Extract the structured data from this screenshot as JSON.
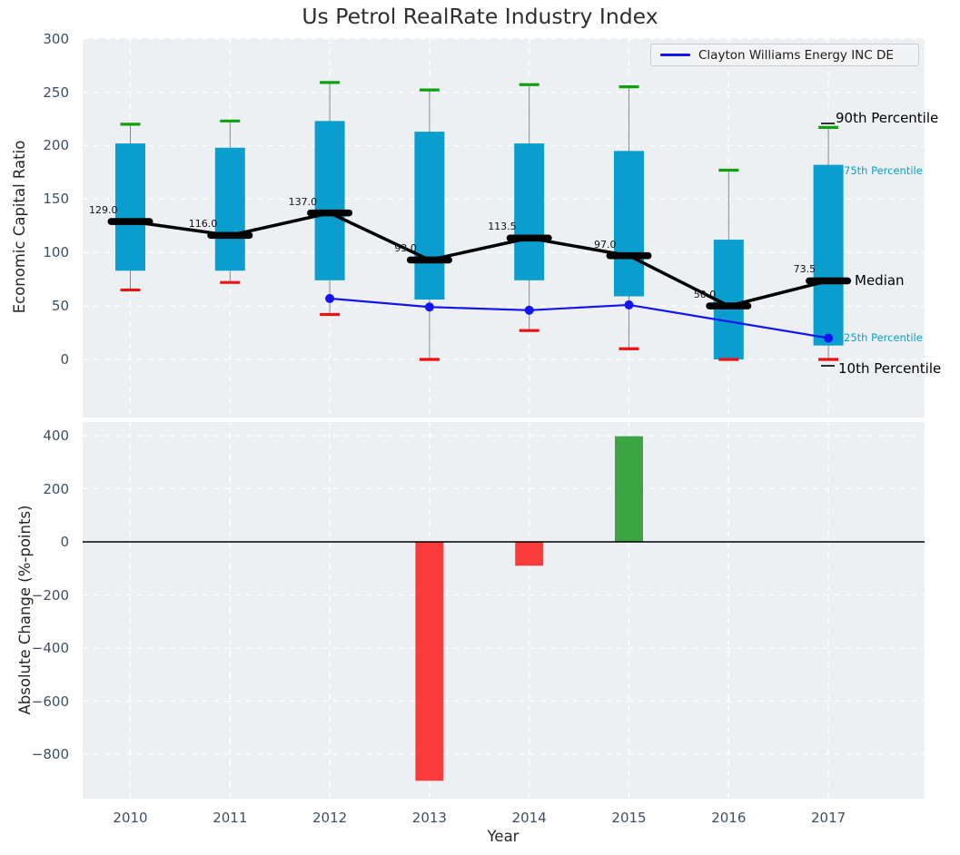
{
  "title": "Us Petrol RealRate Industry Index",
  "colors": {
    "panel_bg": "#edf0f2",
    "grid": "#ffffff",
    "box_fill": "#0a9ecf",
    "whisker": "#888888",
    "cap_90th": "#0fa00f",
    "cap_10th": "#ee1111",
    "median": "#000000",
    "company_line": "#1414f0",
    "bar_positive": "#3ba443",
    "bar_negative": "#fa3c3c",
    "tick_text": "#3d4f63",
    "percentile_cyan": "#0a9ecf"
  },
  "chart_data": [
    {
      "type": "box",
      "title": "Us Petrol RealRate Industry Index",
      "xlabel": "Year",
      "ylabel": "Economic Capital Ratio",
      "categories": [
        "2010",
        "2011",
        "2012",
        "2013",
        "2014",
        "2015",
        "2016",
        "2017"
      ],
      "yticks": [
        0,
        50,
        100,
        150,
        200,
        250,
        300
      ],
      "ylim": [
        -54,
        300
      ],
      "grid": true,
      "legend_position": "upper right",
      "boxes": [
        {
          "year": "2010",
          "p10": 65,
          "p25": 83,
          "median": 129.0,
          "p75": 202,
          "p90": 220
        },
        {
          "year": "2011",
          "p10": 72,
          "p25": 83,
          "median": 116.0,
          "p75": 198,
          "p90": 223
        },
        {
          "year": "2012",
          "p10": 42,
          "p25": 74,
          "median": 137.0,
          "p75": 223,
          "p90": 259
        },
        {
          "year": "2013",
          "p10": 0,
          "p25": 56,
          "median": 93.0,
          "p75": 213,
          "p90": 252
        },
        {
          "year": "2014",
          "p10": 27,
          "p25": 74,
          "median": 113.5,
          "p75": 202,
          "p90": 257
        },
        {
          "year": "2015",
          "p10": 10,
          "p25": 59,
          "median": 97.0,
          "p75": 195,
          "p90": 255
        },
        {
          "year": "2016",
          "p10": 0,
          "p25": 0,
          "median": 50.0,
          "p75": 112,
          "p90": 177
        },
        {
          "year": "2017",
          "p10": 0,
          "p25": 13,
          "median": 73.5,
          "p75": 182,
          "p90": 217
        }
      ],
      "median_value_labels": [
        "129.0",
        "116.0",
        "137.0",
        "93.0",
        "113.5",
        "97.0",
        "50.0",
        "73.5"
      ],
      "overlay_line": {
        "name": "Clayton Williams Energy INC DE",
        "values": [
          null,
          null,
          57,
          49,
          46,
          51,
          null,
          20
        ]
      },
      "percentile_labels": [
        "90th Percentile",
        "75th Percentile",
        "Median",
        "25th Percentile",
        "10th Percentile"
      ]
    },
    {
      "type": "bar",
      "xlabel": "Year",
      "ylabel": "Absolute Change (%-points)",
      "categories": [
        "2010",
        "2011",
        "2012",
        "2013",
        "2014",
        "2015",
        "2016",
        "2017"
      ],
      "values": [
        0,
        0,
        0,
        -900,
        -90,
        398,
        0,
        0
      ],
      "yticks": [
        400,
        200,
        0,
        -200,
        -400,
        -600,
        -800
      ],
      "ylim": [
        -967,
        451
      ],
      "grid": true
    }
  ]
}
